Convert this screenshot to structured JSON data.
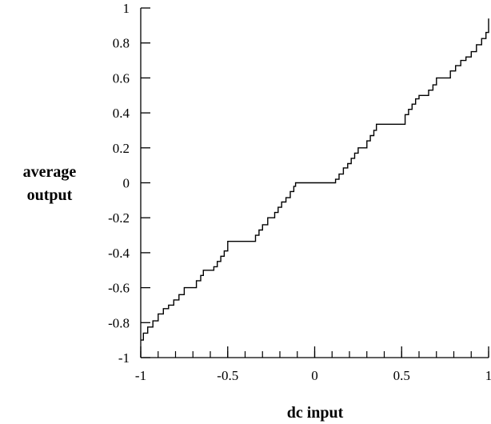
{
  "chart_data": {
    "type": "line",
    "title": "",
    "xlabel": "dc input",
    "ylabel": [
      "average",
      "output"
    ],
    "xlim": [
      -1,
      1
    ],
    "ylim": [
      -1,
      1
    ],
    "xticks": [
      -1,
      -0.5,
      0,
      0.5,
      1
    ],
    "xtick_labels": [
      "-1",
      "-0.5",
      "0",
      "0.5",
      "1"
    ],
    "yticks": [
      -1,
      -0.8,
      -0.6,
      -0.4,
      -0.2,
      0,
      0.2,
      0.4,
      0.6,
      0.8,
      1
    ],
    "ytick_labels": [
      "-1",
      "-0.8",
      "-0.6",
      "-0.4",
      "-0.2",
      "0",
      "0.2",
      "0.4",
      "0.6",
      "0.8",
      "1"
    ],
    "x_minor_step": 0.1,
    "grid": false,
    "legend": false,
    "series": [
      {
        "points": [
          [
            -1.0,
            -0.9
          ],
          [
            -0.985,
            -0.86
          ],
          [
            -0.96,
            -0.825
          ],
          [
            -0.93,
            -0.79
          ],
          [
            -0.9,
            -0.75
          ],
          [
            -0.87,
            -0.72
          ],
          [
            -0.84,
            -0.7
          ],
          [
            -0.81,
            -0.67
          ],
          [
            -0.78,
            -0.64
          ],
          [
            -0.75,
            -0.6
          ],
          [
            -0.7,
            -0.6
          ],
          [
            -0.68,
            -0.56
          ],
          [
            -0.655,
            -0.53
          ],
          [
            -0.64,
            -0.5
          ],
          [
            -0.6,
            -0.5
          ],
          [
            -0.58,
            -0.48
          ],
          [
            -0.56,
            -0.45
          ],
          [
            -0.54,
            -0.42
          ],
          [
            -0.52,
            -0.39
          ],
          [
            -0.5,
            -0.335
          ],
          [
            -0.355,
            -0.335
          ],
          [
            -0.34,
            -0.3
          ],
          [
            -0.32,
            -0.27
          ],
          [
            -0.3,
            -0.24
          ],
          [
            -0.27,
            -0.2
          ],
          [
            -0.25,
            -0.2
          ],
          [
            -0.23,
            -0.17
          ],
          [
            -0.21,
            -0.14
          ],
          [
            -0.19,
            -0.11
          ],
          [
            -0.165,
            -0.085
          ],
          [
            -0.14,
            -0.05
          ],
          [
            -0.12,
            -0.02
          ],
          [
            -0.11,
            0.0
          ],
          [
            0.11,
            0.0
          ],
          [
            0.12,
            0.02
          ],
          [
            0.14,
            0.05
          ],
          [
            0.165,
            0.085
          ],
          [
            0.19,
            0.11
          ],
          [
            0.21,
            0.14
          ],
          [
            0.23,
            0.17
          ],
          [
            0.25,
            0.2
          ],
          [
            0.27,
            0.2
          ],
          [
            0.3,
            0.24
          ],
          [
            0.32,
            0.27
          ],
          [
            0.34,
            0.3
          ],
          [
            0.355,
            0.335
          ],
          [
            0.5,
            0.335
          ],
          [
            0.52,
            0.39
          ],
          [
            0.54,
            0.42
          ],
          [
            0.56,
            0.45
          ],
          [
            0.58,
            0.48
          ],
          [
            0.6,
            0.5
          ],
          [
            0.64,
            0.5
          ],
          [
            0.655,
            0.53
          ],
          [
            0.68,
            0.56
          ],
          [
            0.7,
            0.6
          ],
          [
            0.75,
            0.6
          ],
          [
            0.78,
            0.64
          ],
          [
            0.81,
            0.67
          ],
          [
            0.84,
            0.7
          ],
          [
            0.87,
            0.72
          ],
          [
            0.9,
            0.75
          ],
          [
            0.93,
            0.79
          ],
          [
            0.96,
            0.825
          ],
          [
            0.985,
            0.86
          ],
          [
            1.0,
            0.94
          ]
        ]
      }
    ]
  }
}
